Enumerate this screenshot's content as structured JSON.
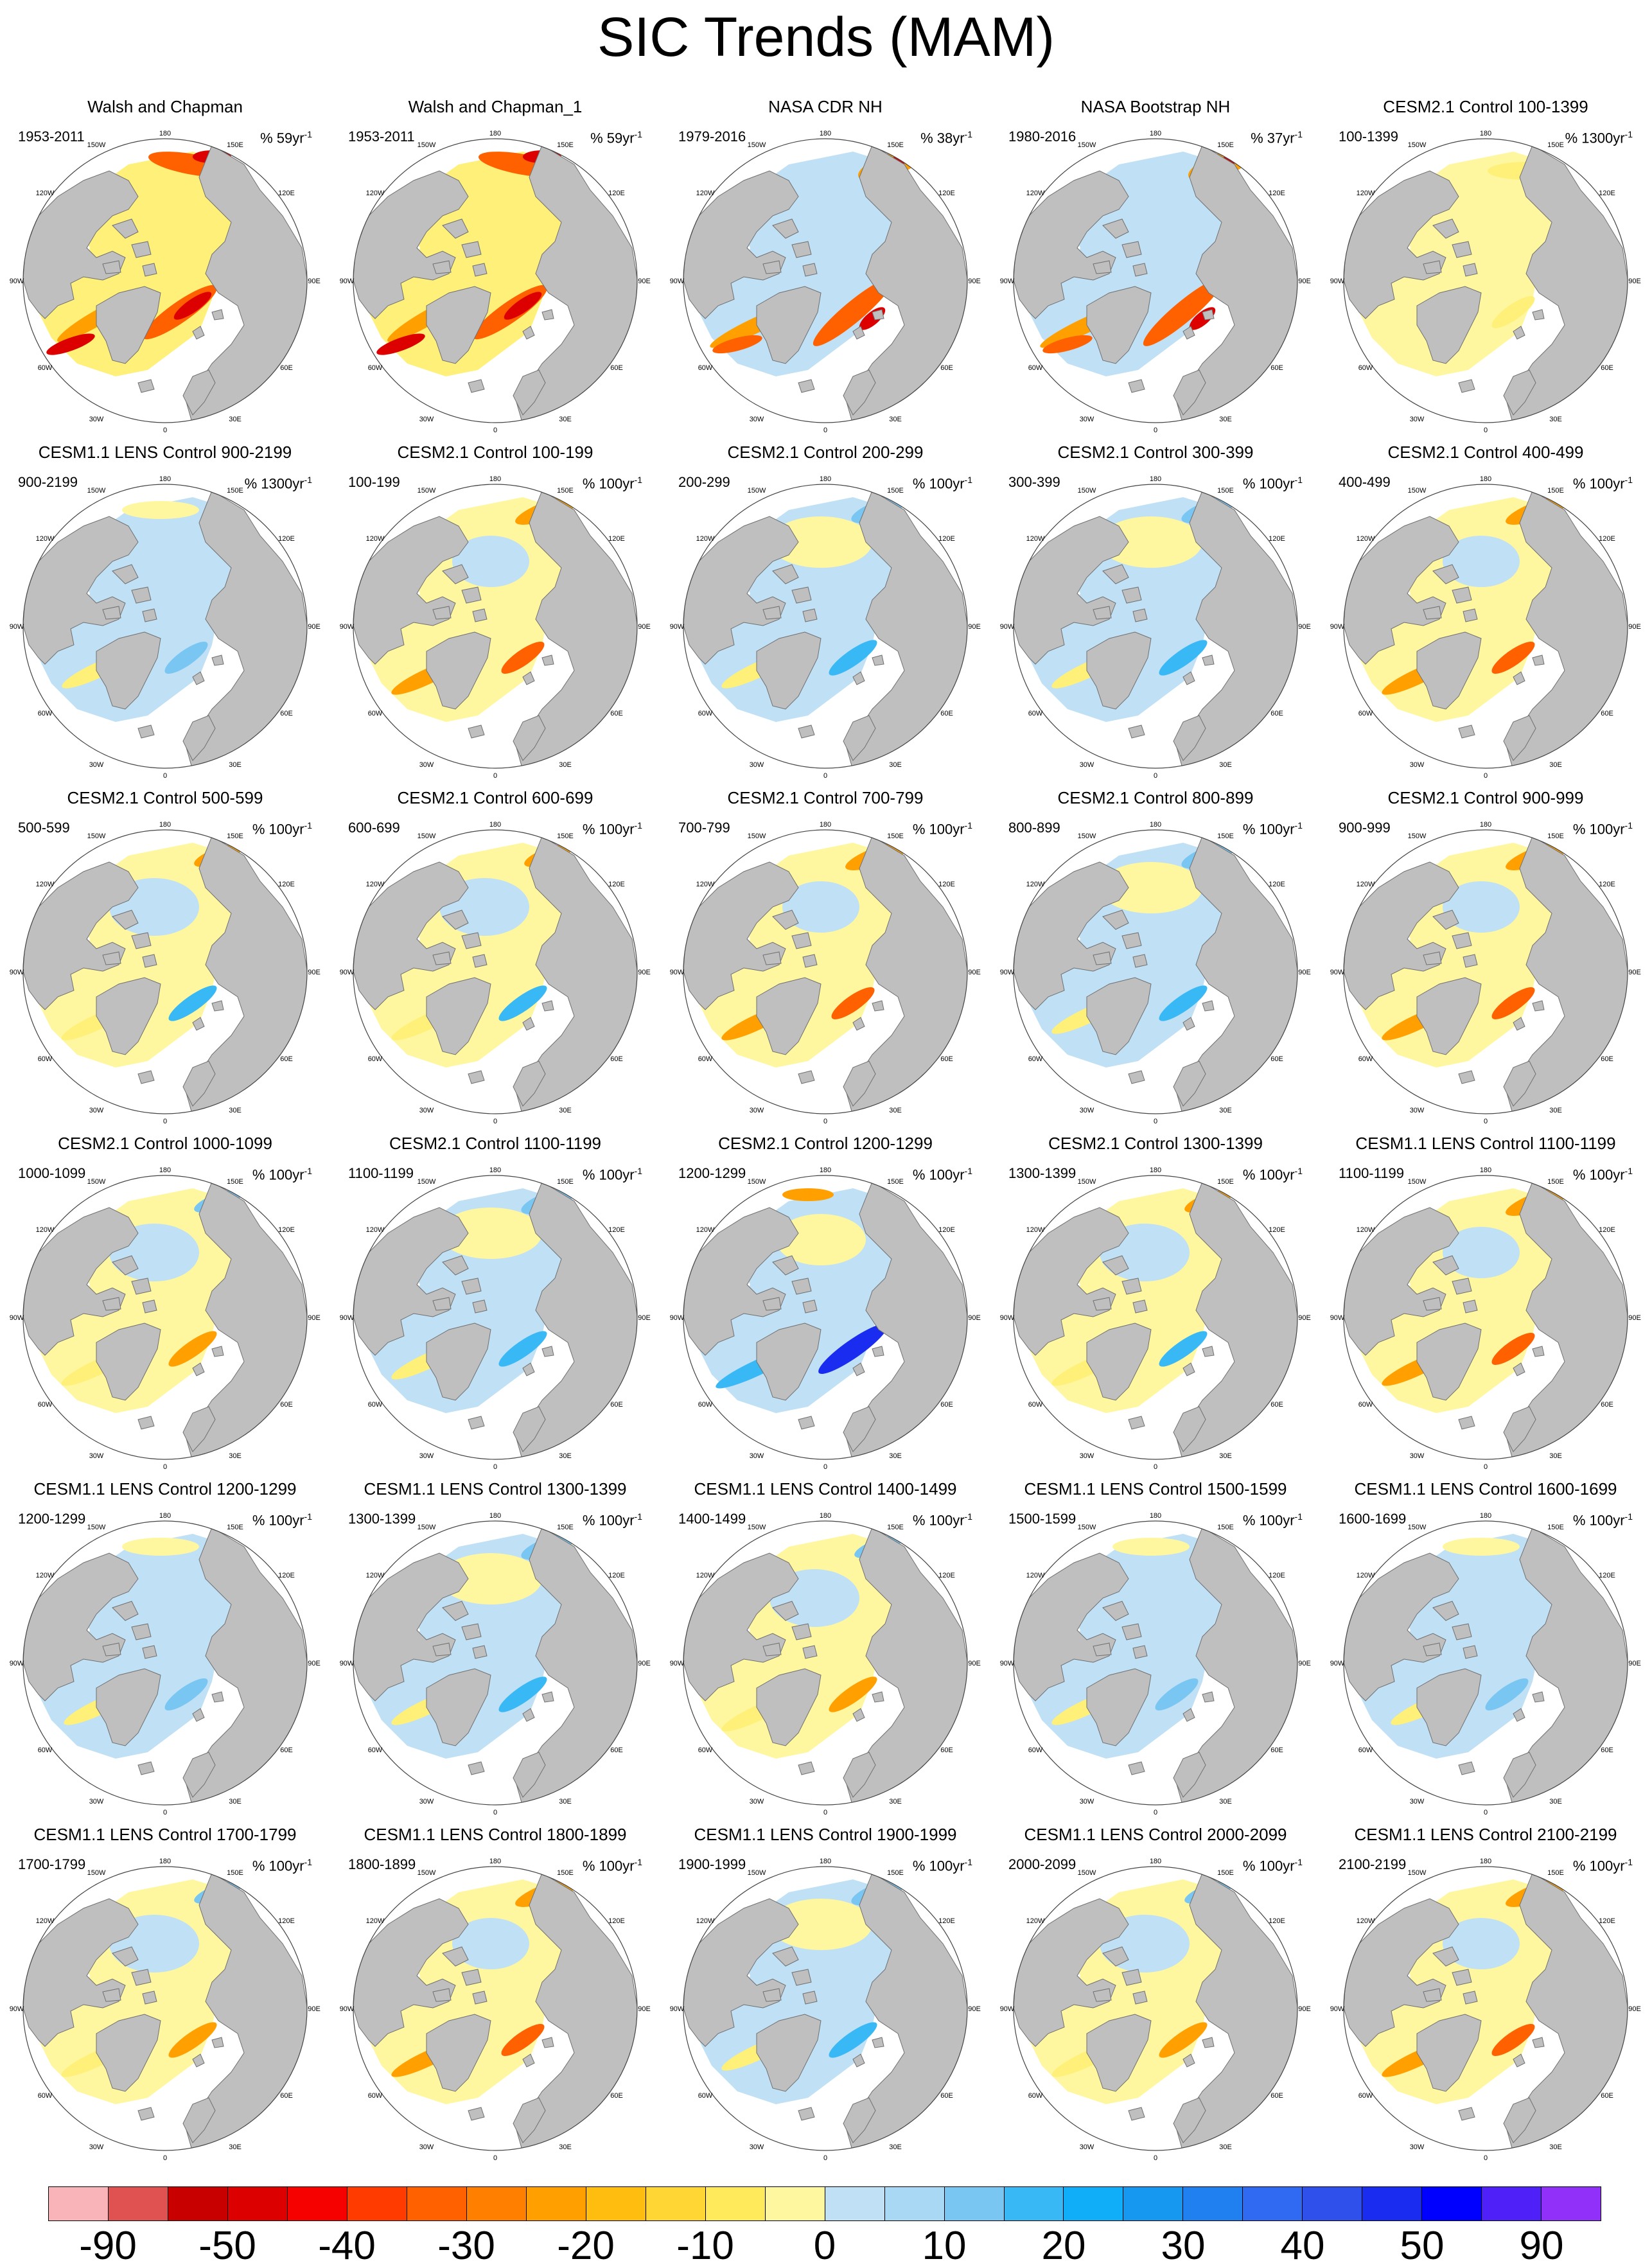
{
  "title": "SIC Trends (MAM)",
  "panels": [
    {
      "title": "Walsh and Chapman",
      "range": "1953-2011",
      "units_prefix": "% 59yr",
      "units_exp": "-1",
      "pattern": "obs"
    },
    {
      "title": "Walsh and Chapman_1",
      "range": "1953-2011",
      "units_prefix": "% 59yr",
      "units_exp": "-1",
      "pattern": "obs"
    },
    {
      "title": "NASA CDR NH",
      "range": "1979-2016",
      "units_prefix": "% 38yr",
      "units_exp": "-1",
      "pattern": "sat"
    },
    {
      "title": "NASA Bootstrap NH",
      "range": "1980-2016",
      "units_prefix": "% 37yr",
      "units_exp": "-1",
      "pattern": "sat"
    },
    {
      "title": "CESM2.1 Control 100-1399",
      "range": "100-1399",
      "units_prefix": "% 1300yr",
      "units_exp": "-1",
      "pattern": "yellow"
    },
    {
      "title": "CESM1.1 LENS Control 900-2199",
      "range": "900-2199",
      "units_prefix": "% 1300yr",
      "units_exp": "-1",
      "pattern": "lblue"
    },
    {
      "title": "CESM2.1 Control 100-199",
      "range": "100-199",
      "units_prefix": "% 100yr",
      "units_exp": "-1",
      "pattern": "orange"
    },
    {
      "title": "CESM2.1 Control 200-299",
      "range": "200-299",
      "units_prefix": "% 100yr",
      "units_exp": "-1",
      "pattern": "blue"
    },
    {
      "title": "CESM2.1 Control 300-399",
      "range": "300-399",
      "units_prefix": "% 100yr",
      "units_exp": "-1",
      "pattern": "blue"
    },
    {
      "title": "CESM2.1 Control 400-499",
      "range": "400-499",
      "units_prefix": "% 100yr",
      "units_exp": "-1",
      "pattern": "orange"
    },
    {
      "title": "CESM2.1 Control 500-599",
      "range": "500-599",
      "units_prefix": "% 100yr",
      "units_exp": "-1",
      "pattern": "mixed"
    },
    {
      "title": "CESM2.1 Control 600-699",
      "range": "600-699",
      "units_prefix": "% 100yr",
      "units_exp": "-1",
      "pattern": "mixed"
    },
    {
      "title": "CESM2.1 Control 700-799",
      "range": "700-799",
      "units_prefix": "% 100yr",
      "units_exp": "-1",
      "pattern": "orange"
    },
    {
      "title": "CESM2.1 Control 800-899",
      "range": "800-899",
      "units_prefix": "% 100yr",
      "units_exp": "-1",
      "pattern": "blue"
    },
    {
      "title": "CESM2.1 Control 900-999",
      "range": "900-999",
      "units_prefix": "% 100yr",
      "units_exp": "-1",
      "pattern": "orange"
    },
    {
      "title": "CESM2.1 Control 1000-1099",
      "range": "1000-1099",
      "units_prefix": "% 100yr",
      "units_exp": "-1",
      "pattern": "mixed"
    },
    {
      "title": "CESM2.1 Control 1100-1199",
      "range": "1100-1199",
      "units_prefix": "% 100yr",
      "units_exp": "-1",
      "pattern": "blue"
    },
    {
      "title": "CESM2.1 Control 1200-1299",
      "range": "1200-1299",
      "units_prefix": "% 100yr",
      "units_exp": "-1",
      "pattern": "dblue"
    },
    {
      "title": "CESM2.1 Control 1300-1399",
      "range": "1300-1399",
      "units_prefix": "% 100yr",
      "units_exp": "-1",
      "pattern": "mixed"
    },
    {
      "title": "CESM1.1 LENS Control 1100-1199",
      "range": "1100-1199",
      "units_prefix": "% 100yr",
      "units_exp": "-1",
      "pattern": "orange"
    },
    {
      "title": "CESM1.1 LENS Control 1200-1299",
      "range": "1200-1299",
      "units_prefix": "% 100yr",
      "units_exp": "-1",
      "pattern": "lblue"
    },
    {
      "title": "CESM1.1 LENS Control 1300-1399",
      "range": "1300-1399",
      "units_prefix": "% 100yr",
      "units_exp": "-1",
      "pattern": "blue"
    },
    {
      "title": "CESM1.1 LENS Control 1400-1499",
      "range": "1400-1499",
      "units_prefix": "% 100yr",
      "units_exp": "-1",
      "pattern": "mixed"
    },
    {
      "title": "CESM1.1 LENS Control 1500-1599",
      "range": "1500-1599",
      "units_prefix": "% 100yr",
      "units_exp": "-1",
      "pattern": "lblue"
    },
    {
      "title": "CESM1.1 LENS Control 1600-1699",
      "range": "1600-1699",
      "units_prefix": "% 100yr",
      "units_exp": "-1",
      "pattern": "lblue"
    },
    {
      "title": "CESM1.1 LENS Control 1700-1799",
      "range": "1700-1799",
      "units_prefix": "% 100yr",
      "units_exp": "-1",
      "pattern": "mixed"
    },
    {
      "title": "CESM1.1 LENS Control 1800-1899",
      "range": "1800-1899",
      "units_prefix": "% 100yr",
      "units_exp": "-1",
      "pattern": "orange"
    },
    {
      "title": "CESM1.1 LENS Control 1900-1999",
      "range": "1900-1999",
      "units_prefix": "% 100yr",
      "units_exp": "-1",
      "pattern": "blue"
    },
    {
      "title": "CESM1.1 LENS Control 2000-2099",
      "range": "2000-2099",
      "units_prefix": "% 100yr",
      "units_exp": "-1",
      "pattern": "mixed"
    },
    {
      "title": "CESM1.1 LENS Control 2100-2199",
      "range": "2100-2199",
      "units_prefix": "% 100yr",
      "units_exp": "-1",
      "pattern": "orange"
    }
  ],
  "map_labels": {
    "lon_180": "180",
    "lon_150w": "150W",
    "lon_150e": "150E",
    "lon_120w": "120W",
    "lon_120e": "120E",
    "lon_90w": "90W",
    "lon_90e": "90E",
    "lon_60w": "60W",
    "lon_60e": "60E",
    "lon_30w": "30W",
    "lon_30e": "30E",
    "lon_0": "0"
  },
  "colorbar": {
    "colors": [
      "#f8b4b9",
      "#e05252",
      "#c80000",
      "#dc0000",
      "#f60000",
      "#ff3b00",
      "#ff6000",
      "#ff8000",
      "#ffa000",
      "#ffbd10",
      "#ffd633",
      "#ffea5c",
      "#fff7a0",
      "#bfe0f5",
      "#a8d8f3",
      "#7ac6f2",
      "#38b8f5",
      "#10aef8",
      "#1798f0",
      "#2080f0",
      "#306af2",
      "#2f50ea",
      "#1a2cf0",
      "#0000ff",
      "#5020f8",
      "#9030f8"
    ],
    "labels": [
      "-90",
      "-50",
      "-40",
      "-30",
      "-20",
      "-10",
      "0",
      "10",
      "20",
      "30",
      "40",
      "50",
      "90"
    ]
  }
}
